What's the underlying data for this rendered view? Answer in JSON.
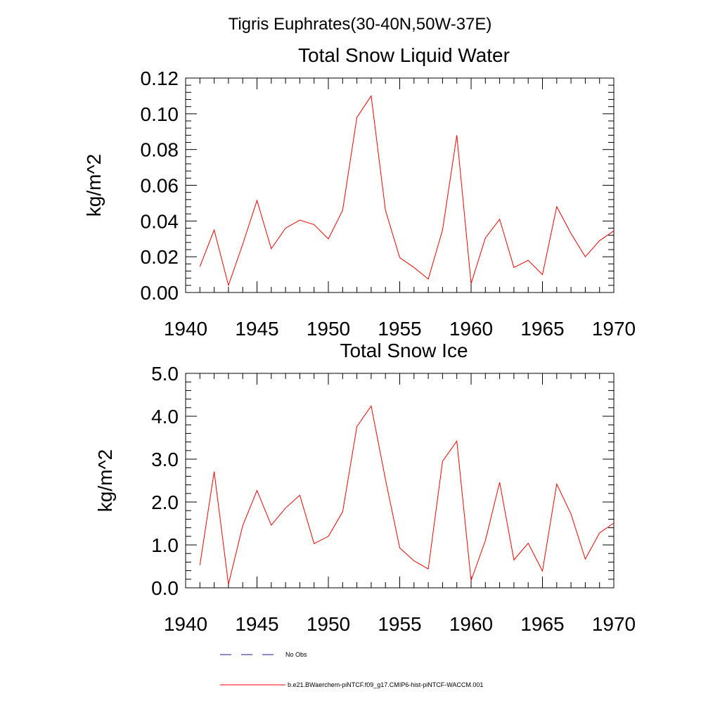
{
  "figure": {
    "title": "Tigris Euphrates(30-40N,50W-37E)"
  },
  "legend": {
    "entries": [
      {
        "label": "No Obs",
        "color": "#1a1a8c",
        "dash": true
      },
      {
        "label": "b.e21.BWaerchem-piNTCF.f09_g17.CMIP6-hist-piNTCF-WACCM.001",
        "color": "#ff0000",
        "dash": false
      }
    ]
  },
  "chart_data": [
    {
      "type": "line",
      "title": "Total Snow Liquid Water",
      "xlabel": "",
      "ylabel": "kg/m^2",
      "xlim": [
        1940,
        1970
      ],
      "ylim": [
        0,
        0.12
      ],
      "xticks": [
        1940,
        1945,
        1950,
        1955,
        1960,
        1965,
        1970
      ],
      "xtick_labels": [
        "1940",
        "1945",
        "1950",
        "1955",
        "1960",
        "1965",
        "1970"
      ],
      "yticks": [
        0,
        0.02,
        0.04,
        0.06,
        0.08,
        0.1,
        0.12
      ],
      "ytick_labels": [
        "0.00",
        "0.02",
        "0.04",
        "0.06",
        "0.08",
        "0.10",
        "0.12"
      ],
      "grid": false,
      "series": [
        {
          "color": "#ff0000",
          "x": [
            1941,
            1942,
            1943,
            1944,
            1945,
            1946,
            1947,
            1948,
            1949,
            1950,
            1951,
            1952,
            1953,
            1954,
            1955,
            1956,
            1957,
            1958,
            1959,
            1960,
            1961,
            1962,
            1963,
            1964,
            1965,
            1966,
            1967,
            1968,
            1969,
            1970
          ],
          "values": [
            0.0145,
            0.035,
            0.004,
            0.027,
            0.0515,
            0.0245,
            0.036,
            0.0405,
            0.038,
            0.03,
            0.046,
            0.098,
            0.11,
            0.046,
            0.0195,
            0.014,
            0.0075,
            0.035,
            0.088,
            0.005,
            0.0305,
            0.041,
            0.014,
            0.018,
            0.01,
            0.048,
            0.033,
            0.02,
            0.029,
            0.0345
          ]
        }
      ]
    },
    {
      "type": "line",
      "title": "Total Snow Ice",
      "xlabel": "",
      "ylabel": "kg/m^2",
      "xlim": [
        1940,
        1970
      ],
      "ylim": [
        0,
        5
      ],
      "xticks": [
        1940,
        1945,
        1950,
        1955,
        1960,
        1965,
        1970
      ],
      "xtick_labels": [
        "1940",
        "1945",
        "1950",
        "1955",
        "1960",
        "1965",
        "1970"
      ],
      "yticks": [
        0,
        1,
        2,
        3,
        4,
        5
      ],
      "ytick_labels": [
        "0.0",
        "1.0",
        "2.0",
        "3.0",
        "4.0",
        "5.0"
      ],
      "grid": false,
      "series": [
        {
          "color": "#ff0000",
          "x": [
            1941,
            1942,
            1943,
            1944,
            1945,
            1946,
            1947,
            1948,
            1949,
            1950,
            1951,
            1952,
            1953,
            1954,
            1955,
            1956,
            1957,
            1958,
            1959,
            1960,
            1961,
            1962,
            1963,
            1964,
            1965,
            1966,
            1967,
            1968,
            1969,
            1970
          ],
          "values": [
            0.53,
            2.71,
            0.08,
            1.45,
            2.27,
            1.46,
            1.86,
            2.16,
            1.03,
            1.2,
            1.77,
            3.76,
            4.24,
            2.53,
            0.93,
            0.63,
            0.44,
            2.95,
            3.42,
            0.17,
            1.1,
            2.46,
            0.65,
            1.04,
            0.39,
            2.42,
            1.72,
            0.67,
            1.28,
            1.51
          ]
        }
      ]
    }
  ]
}
